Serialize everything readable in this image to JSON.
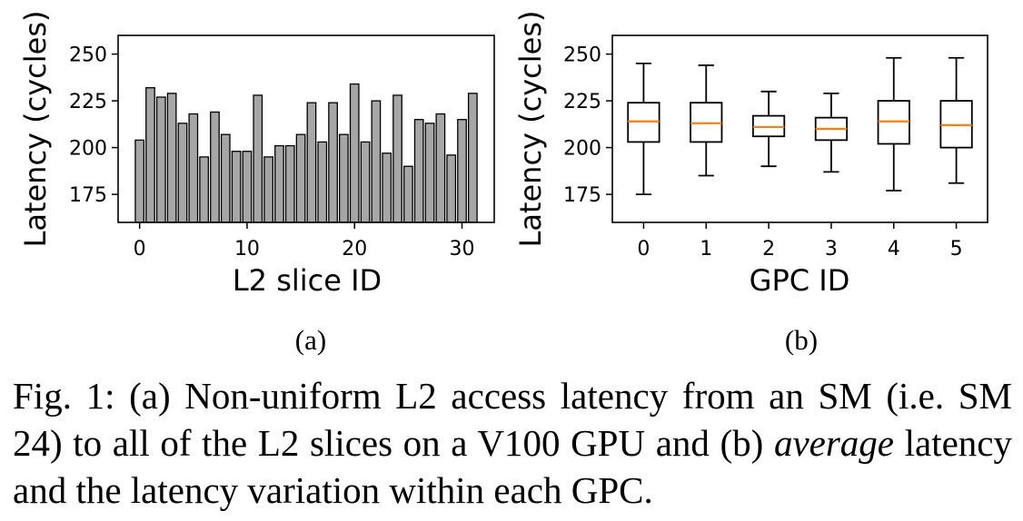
{
  "chart_data": [
    {
      "type": "bar",
      "panel_label": "(a)",
      "xlabel": "L2 slice ID",
      "ylabel": "Latency (cycles)",
      "xlim": [
        -2,
        33
      ],
      "ylim": [
        160,
        260
      ],
      "xticks": [
        0,
        10,
        20,
        30
      ],
      "yticks": [
        175,
        200,
        225,
        250
      ],
      "grid": false,
      "bar_color": "#a6a6a6",
      "categories": [
        0,
        1,
        2,
        3,
        4,
        5,
        6,
        7,
        8,
        9,
        10,
        11,
        12,
        13,
        14,
        15,
        16,
        17,
        18,
        19,
        20,
        21,
        22,
        23,
        24,
        25,
        26,
        27,
        28,
        29,
        30,
        31
      ],
      "values": [
        204,
        232,
        227,
        229,
        213,
        218,
        195,
        219,
        207,
        198,
        198,
        228,
        195,
        201,
        201,
        207,
        224,
        203,
        224,
        207,
        234,
        203,
        225,
        197,
        228,
        190,
        215,
        213,
        218,
        196,
        215,
        229
      ]
    },
    {
      "type": "box",
      "panel_label": "(b)",
      "xlabel": "GPC ID",
      "ylabel": "Latency (cycles)",
      "ylim": [
        160,
        260
      ],
      "yticks": [
        175,
        200,
        225,
        250
      ],
      "grid": false,
      "median_color": "#ff7f0e",
      "categories": [
        "0",
        "1",
        "2",
        "3",
        "4",
        "5"
      ],
      "boxes": [
        {
          "whislo": 175,
          "q1": 203,
          "med": 214,
          "q3": 224,
          "whishi": 245
        },
        {
          "whislo": 185,
          "q1": 203,
          "med": 213,
          "q3": 224,
          "whishi": 244
        },
        {
          "whislo": 190,
          "q1": 206,
          "med": 211,
          "q3": 217,
          "whishi": 230
        },
        {
          "whislo": 187,
          "q1": 204,
          "med": 210,
          "q3": 216,
          "whishi": 229
        },
        {
          "whislo": 177,
          "q1": 202,
          "med": 214,
          "q3": 225,
          "whishi": 248
        },
        {
          "whislo": 181,
          "q1": 200,
          "med": 212,
          "q3": 225,
          "whishi": 248
        }
      ]
    }
  ],
  "caption": {
    "part1": "Fig. 1: (a) Non-uniform L2 access latency from an SM (i.e. SM 24) to all of the L2 slices on a V100 GPU and (b) ",
    "emph": "average",
    "part2": " latency and the latency variation within each GPC."
  }
}
